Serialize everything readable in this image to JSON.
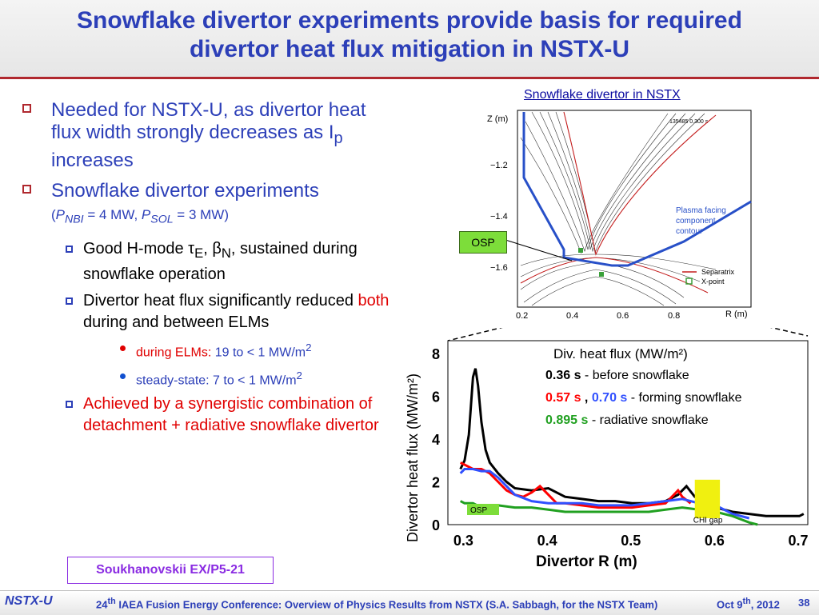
{
  "title": {
    "line1": "Snowflake divertor experiments provide basis for required",
    "line2": "divertor heat flux mitigation in NSTX-U"
  },
  "bullets": {
    "b1": {
      "text1": "Needed for NSTX-U, as divertor heat flux width strongly decreases as I",
      "sub": "p",
      "text2": " increases"
    },
    "b2": {
      "text": "Snowflake divertor experiments",
      "params": {
        "open": "(",
        "pnbi": "P",
        "pnbi_sub": "NBI",
        "pnbi_val": " = 4 MW, ",
        "psol": "P",
        "psol_sub": "SOL",
        "psol_val": " = 3 MW)"
      }
    },
    "s1": {
      "text1": "Good H-mode ",
      "tau": "τ",
      "tau_sub": "E",
      "sep": ", ",
      "beta": "β",
      "beta_sub": "N",
      "text2": ", sustained during snowflake operation"
    },
    "s2": {
      "text1": "Divertor heat flux significantly reduced ",
      "red": "both",
      "text2": " during and between ELMs"
    },
    "d1": {
      "label": "during ELMs: ",
      "val": "19 to < 1 MW/m",
      "sup": "2"
    },
    "d2": {
      "label": "steady-state: 7 to < 1 MW/m",
      "sup": "2"
    },
    "s3": {
      "text": "Achieved by a synergistic combination of detachment + radiative snowflake divertor"
    }
  },
  "figure": {
    "caption": "Snowflake divertor in NSTX",
    "shot": "135485 0.300 s",
    "zlabel": "Z (m)",
    "rlabel": "R (m)",
    "zticks": [
      "−1.2",
      "−1.4",
      "−1.6"
    ],
    "rticks": [
      "0.2",
      "0.4",
      "0.6",
      "0.8"
    ],
    "pfc_label": [
      "Plasma facing",
      "component",
      "contour"
    ],
    "legend_sep": "Separatrix",
    "legend_xpt": "X-point",
    "osp": "OSP"
  },
  "chart_data": {
    "type": "line",
    "xlabel": "Divertor R (m)",
    "ylabel": "Divertor heat flux (MW/m²)",
    "xlim": [
      0.28,
      0.71
    ],
    "ylim": [
      0,
      8.6
    ],
    "xticks": [
      "0.3",
      "0.4",
      "0.5",
      "0.6",
      "0.7"
    ],
    "yticks": [
      "0",
      "2",
      "4",
      "6",
      "8"
    ],
    "legend_title": "Div. heat flux (MW/m²)",
    "legend": {
      "black_time": "0.36 s",
      "black_desc": "  - before snowflake",
      "red_time": "0.57 s",
      "comma": " , ",
      "blue_time": "0.70 s",
      "forming_desc": "  - forming snowflake",
      "green_time": "0.895 s",
      "green_desc": "  - radiative snowflake"
    },
    "osp_tag": "OSP",
    "chi_tag": "CHI gap",
    "chi_range": [
      0.575,
      0.605
    ],
    "series": [
      {
        "color": "#000000",
        "x": [
          0.295,
          0.3,
          0.305,
          0.31,
          0.313,
          0.316,
          0.32,
          0.325,
          0.33,
          0.34,
          0.35,
          0.36,
          0.38,
          0.4,
          0.42,
          0.44,
          0.46,
          0.48,
          0.5,
          0.52,
          0.54,
          0.555,
          0.565,
          0.575,
          0.59,
          0.6,
          0.62,
          0.64,
          0.66,
          0.68,
          0.7,
          0.705
        ],
        "y": [
          2.6,
          3.0,
          4.2,
          6.9,
          7.3,
          6.5,
          4.8,
          3.5,
          2.9,
          2.4,
          2.0,
          1.7,
          1.6,
          1.7,
          1.3,
          1.2,
          1.1,
          1.1,
          1.0,
          1.0,
          1.1,
          1.4,
          1.8,
          1.3,
          1.0,
          0.8,
          0.6,
          0.5,
          0.4,
          0.4,
          0.4,
          0.5
        ]
      },
      {
        "color": "#ff0000",
        "x": [
          0.295,
          0.3,
          0.31,
          0.32,
          0.33,
          0.34,
          0.35,
          0.36,
          0.37,
          0.38,
          0.39,
          0.4,
          0.41,
          0.42,
          0.44,
          0.46,
          0.48,
          0.5,
          0.52,
          0.54,
          0.55,
          0.555,
          0.56,
          0.57
        ],
        "y": [
          2.9,
          2.8,
          2.6,
          2.6,
          2.4,
          2.0,
          1.6,
          1.4,
          1.3,
          1.5,
          1.8,
          1.4,
          1.0,
          1.0,
          0.9,
          0.8,
          0.8,
          0.8,
          0.9,
          1.0,
          1.4,
          1.6,
          1.3,
          1.0
        ]
      },
      {
        "color": "#3050ff",
        "x": [
          0.295,
          0.3,
          0.31,
          0.32,
          0.33,
          0.34,
          0.35,
          0.36,
          0.38,
          0.4,
          0.42,
          0.44,
          0.46,
          0.48,
          0.5,
          0.52,
          0.54,
          0.56,
          0.58,
          0.6,
          0.62,
          0.64
        ],
        "y": [
          2.4,
          2.6,
          2.6,
          2.5,
          2.5,
          2.2,
          1.8,
          1.4,
          1.1,
          1.0,
          1.0,
          1.0,
          0.9,
          0.9,
          0.9,
          1.0,
          1.1,
          1.2,
          1.0,
          0.9,
          0.5,
          0.3
        ]
      },
      {
        "color": "#20a020",
        "x": [
          0.295,
          0.3,
          0.31,
          0.32,
          0.33,
          0.34,
          0.36,
          0.38,
          0.4,
          0.42,
          0.44,
          0.46,
          0.48,
          0.5,
          0.52,
          0.54,
          0.56,
          0.58,
          0.6,
          0.62,
          0.64,
          0.65
        ],
        "y": [
          1.1,
          1.0,
          1.0,
          0.8,
          0.9,
          0.9,
          0.8,
          0.8,
          0.7,
          0.6,
          0.6,
          0.6,
          0.6,
          0.6,
          0.6,
          0.7,
          0.8,
          0.7,
          0.6,
          0.4,
          0.1,
          0.0
        ]
      }
    ]
  },
  "reference": "Soukhanovskii EX/P5-21",
  "footer": {
    "logo": "NSTX-U",
    "conf_num": "24",
    "conf_sup": "th",
    "conf_rest": " IAEA Fusion Energy Conference: Overview of Physics Results from NSTX (S.A. Sabbagh, for the NSTX Team)",
    "date_a": "Oct 9",
    "date_sup": "th",
    "date_b": ", 2012",
    "page": "38"
  }
}
